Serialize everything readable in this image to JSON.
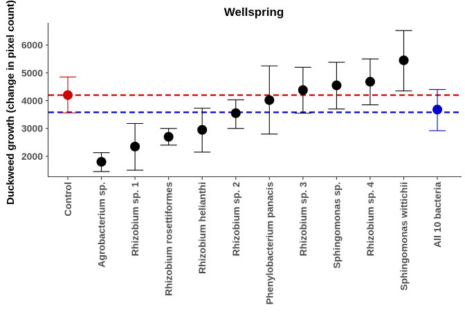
{
  "chart_data": {
    "type": "scatter",
    "title": "Wellspring",
    "xlabel": "",
    "ylabel": "Duckweed growth (change in pixel count)",
    "ylim": [
      1250,
      6800
    ],
    "yticks": [
      2000,
      3000,
      4000,
      5000,
      6000
    ],
    "grid": false,
    "categories": [
      "Control",
      "Agrobacterium sp.",
      "Rhizobium sp. 1",
      "Rhizobium rosettiformes",
      "Rhizobium helianthi",
      "Rhizobium sp. 2",
      "Phenylobacterium panacis",
      "Rhizobium sp. 3",
      "Sphingomonas sp.",
      "Rhizobium sp. 4",
      "Sphingomonas wittichii",
      "All 10 bacteria"
    ],
    "values": [
      4200,
      1800,
      2350,
      2700,
      2950,
      3550,
      4020,
      4380,
      4550,
      4680,
      5450,
      3680
    ],
    "error_low": [
      3560,
      1450,
      1500,
      2400,
      2150,
      3000,
      2800,
      3550,
      3700,
      3850,
      4350,
      2920
    ],
    "error_high": [
      4850,
      2130,
      3180,
      3000,
      3730,
      4030,
      5250,
      5200,
      5380,
      5500,
      6520,
      4400
    ],
    "point_colors": [
      "#cc0000",
      "#000000",
      "#000000",
      "#000000",
      "#000000",
      "#000000",
      "#000000",
      "#000000",
      "#000000",
      "#000000",
      "#000000",
      "#0000cc"
    ],
    "errorbar_colors": [
      "#cc0000",
      "#000000",
      "#000000",
      "#000000",
      "#000000",
      "#000000",
      "#000000",
      "#000000",
      "#000000",
      "#000000",
      "#000000",
      "#0000cc"
    ],
    "reference_lines": [
      {
        "value": 4200,
        "color": "#cc0000",
        "style": "dashed"
      },
      {
        "value": 3580,
        "color": "#0000cc",
        "style": "dashed"
      }
    ]
  }
}
